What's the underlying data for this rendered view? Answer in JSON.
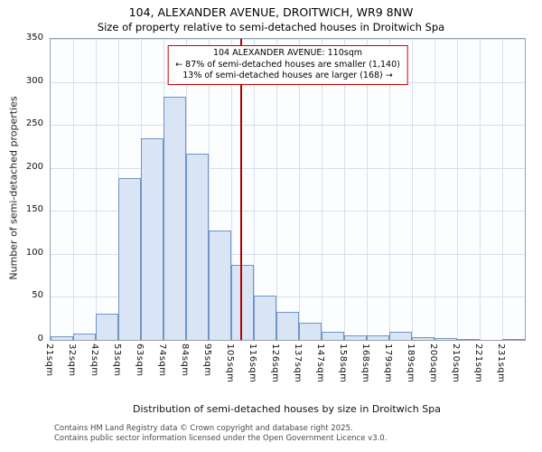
{
  "header": {
    "title": "104, ALEXANDER AVENUE, DROITWICH, WR9 8NW",
    "subtitle": "Size of property relative to semi-detached houses in Droitwich Spa"
  },
  "chart_data": {
    "type": "bar",
    "title": "104, ALEXANDER AVENUE, DROITWICH, WR9 8NW",
    "subtitle": "Size of property relative to semi-detached houses in Droitwich Spa",
    "categories": [
      "21sqm",
      "32sqm",
      "42sqm",
      "53sqm",
      "63sqm",
      "74sqm",
      "84sqm",
      "95sqm",
      "105sqm",
      "116sqm",
      "126sqm",
      "137sqm",
      "147sqm",
      "158sqm",
      "168sqm",
      "179sqm",
      "189sqm",
      "200sqm",
      "210sqm",
      "221sqm",
      "231sqm"
    ],
    "bin_edges_sqm": [
      21,
      32,
      42,
      53,
      63,
      74,
      84,
      95,
      105,
      116,
      126,
      137,
      147,
      158,
      168,
      179,
      189,
      200,
      210,
      221,
      231,
      242
    ],
    "values": [
      4,
      7,
      30,
      188,
      234,
      283,
      217,
      127,
      87,
      51,
      33,
      20,
      10,
      5,
      5,
      9,
      3,
      2,
      1,
      0,
      1
    ],
    "xlabel": "Distribution of semi-detached houses by size in Droitwich Spa",
    "ylabel": "Number of semi-detached properties",
    "ylim": [
      0,
      350
    ],
    "yticks": [
      0,
      50,
      100,
      150,
      200,
      250,
      300,
      350
    ],
    "grid": true,
    "legend": "none",
    "marker": {
      "value_sqm": 110,
      "line_color": "#b30000"
    },
    "annotation": {
      "line1": "104 ALEXANDER AVENUE: 110sqm",
      "line2": "← 87% of semi-detached houses are smaller (1,140)",
      "line3": "13% of semi-detached houses are larger (168) →"
    },
    "colors": {
      "bar_fill": "#d9e4f4",
      "bar_border": "#7095c8",
      "grid": "#d7dfee",
      "marker": "#b30000",
      "annotation_border": "#cc0000"
    }
  },
  "footer": {
    "line1": "Contains HM Land Registry data © Crown copyright and database right 2025.",
    "line2": "Contains public sector information licensed under the Open Government Licence v3.0."
  }
}
